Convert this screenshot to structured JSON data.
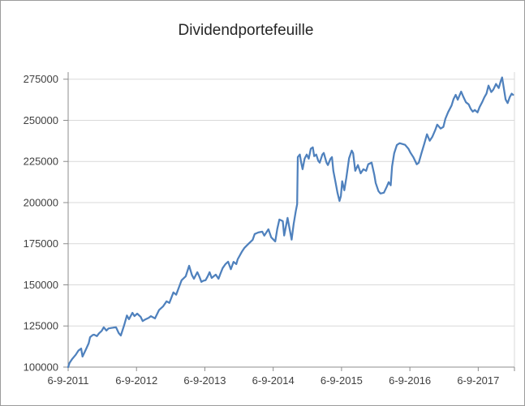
{
  "window": {
    "background": "#ffffff",
    "border_color": "#9b9b9b"
  },
  "chart_data": {
    "type": "line",
    "title": "Dividendportefeuille",
    "xlabel": "",
    "ylabel": "",
    "legend": "none",
    "grid": "horizontal",
    "x_axis": {
      "tick_labels": [
        "6-9-2011",
        "6-9-2012",
        "6-9-2013",
        "6-9-2014",
        "6-9-2015",
        "6-9-2016",
        "6-9-2017"
      ],
      "tick_t": [
        0,
        1,
        2,
        3,
        4,
        5,
        6
      ],
      "t_range": [
        0,
        6.53
      ],
      "t_unit": "years since 6-9-2011"
    },
    "y_axis": {
      "tick_labels": [
        "100000",
        "125000",
        "150000",
        "175000",
        "200000",
        "225000",
        "250000",
        "275000"
      ],
      "tick_values": [
        100000,
        125000,
        150000,
        175000,
        200000,
        225000,
        250000,
        275000
      ],
      "value_range": [
        100000,
        279300
      ]
    },
    "colors": {
      "series": "#4F81BD",
      "gridline": "#D9D9D9",
      "axis": "#8C8C8C",
      "tick_label": "#404040",
      "title": "#262626"
    },
    "series": [
      {
        "name": "Dividendportefeuille",
        "color": "#4F81BD",
        "points": [
          [
            0,
            100000
          ],
          [
            0.02,
            102500
          ],
          [
            0.06,
            105000
          ],
          [
            0.11,
            107500
          ],
          [
            0.15,
            110000
          ],
          [
            0.19,
            111300
          ],
          [
            0.21,
            106400
          ],
          [
            0.26,
            110800
          ],
          [
            0.3,
            114500
          ],
          [
            0.32,
            118200
          ],
          [
            0.36,
            119500
          ],
          [
            0.38,
            119700
          ],
          [
            0.42,
            118800
          ],
          [
            0.45,
            120500
          ],
          [
            0.49,
            122000
          ],
          [
            0.52,
            124200
          ],
          [
            0.56,
            122200
          ],
          [
            0.59,
            123500
          ],
          [
            0.63,
            123800
          ],
          [
            0.66,
            124000
          ],
          [
            0.7,
            124200
          ],
          [
            0.74,
            120700
          ],
          [
            0.77,
            119200
          ],
          [
            0.82,
            125600
          ],
          [
            0.86,
            131400
          ],
          [
            0.89,
            129100
          ],
          [
            0.94,
            133000
          ],
          [
            0.97,
            131000
          ],
          [
            1.01,
            132500
          ],
          [
            1.06,
            130600
          ],
          [
            1.09,
            128000
          ],
          [
            1.13,
            129000
          ],
          [
            1.18,
            130000
          ],
          [
            1.21,
            131000
          ],
          [
            1.27,
            129600
          ],
          [
            1.33,
            134700
          ],
          [
            1.39,
            137000
          ],
          [
            1.44,
            140000
          ],
          [
            1.48,
            139000
          ],
          [
            1.54,
            145400
          ],
          [
            1.58,
            144000
          ],
          [
            1.63,
            149500
          ],
          [
            1.66,
            152800
          ],
          [
            1.72,
            155200
          ],
          [
            1.77,
            161600
          ],
          [
            1.81,
            156000
          ],
          [
            1.84,
            153700
          ],
          [
            1.89,
            157700
          ],
          [
            1.92,
            155000
          ],
          [
            1.95,
            151800
          ],
          [
            1.98,
            152500
          ],
          [
            2.01,
            152800
          ],
          [
            2.04,
            155000
          ],
          [
            2.07,
            157700
          ],
          [
            2.1,
            154200
          ],
          [
            2.14,
            155500
          ],
          [
            2.16,
            156200
          ],
          [
            2.2,
            153700
          ],
          [
            2.23,
            157000
          ],
          [
            2.26,
            160200
          ],
          [
            2.3,
            162500
          ],
          [
            2.34,
            164100
          ],
          [
            2.38,
            159500
          ],
          [
            2.42,
            164000
          ],
          [
            2.46,
            162600
          ],
          [
            2.48,
            165500
          ],
          [
            2.54,
            170000
          ],
          [
            2.58,
            172500
          ],
          [
            2.64,
            175000
          ],
          [
            2.7,
            177400
          ],
          [
            2.73,
            180900
          ],
          [
            2.78,
            181800
          ],
          [
            2.84,
            182300
          ],
          [
            2.87,
            179900
          ],
          [
            2.93,
            183800
          ],
          [
            2.97,
            178900
          ],
          [
            3.03,
            176400
          ],
          [
            3.06,
            184000
          ],
          [
            3.09,
            189700
          ],
          [
            3.14,
            188700
          ],
          [
            3.16,
            180000
          ],
          [
            3.21,
            190700
          ],
          [
            3.24,
            184000
          ],
          [
            3.27,
            177500
          ],
          [
            3.3,
            187000
          ],
          [
            3.33,
            194700
          ],
          [
            3.35,
            199000
          ],
          [
            3.36,
            227700
          ],
          [
            3.39,
            229200
          ],
          [
            3.41,
            224300
          ],
          [
            3.43,
            220300
          ],
          [
            3.46,
            226700
          ],
          [
            3.49,
            229200
          ],
          [
            3.52,
            226700
          ],
          [
            3.55,
            232700
          ],
          [
            3.58,
            233600
          ],
          [
            3.6,
            228200
          ],
          [
            3.63,
            229200
          ],
          [
            3.66,
            225300
          ],
          [
            3.68,
            224300
          ],
          [
            3.72,
            229200
          ],
          [
            3.74,
            230200
          ],
          [
            3.78,
            224300
          ],
          [
            3.8,
            222800
          ],
          [
            3.84,
            226700
          ],
          [
            3.86,
            227700
          ],
          [
            3.88,
            219300
          ],
          [
            3.91,
            212900
          ],
          [
            3.94,
            206000
          ],
          [
            3.97,
            201000
          ],
          [
            3.99,
            204000
          ],
          [
            4.01,
            213000
          ],
          [
            4.04,
            207500
          ],
          [
            4.07,
            215000
          ],
          [
            4.11,
            227000
          ],
          [
            4.15,
            231600
          ],
          [
            4.17,
            230000
          ],
          [
            4.2,
            219300
          ],
          [
            4.24,
            222800
          ],
          [
            4.28,
            217800
          ],
          [
            4.32,
            220300
          ],
          [
            4.36,
            219300
          ],
          [
            4.39,
            223300
          ],
          [
            4.44,
            224300
          ],
          [
            4.48,
            216900
          ],
          [
            4.5,
            211900
          ],
          [
            4.54,
            207000
          ],
          [
            4.57,
            205500
          ],
          [
            4.62,
            206000
          ],
          [
            4.66,
            209500
          ],
          [
            4.69,
            212400
          ],
          [
            4.72,
            210500
          ],
          [
            4.74,
            222000
          ],
          [
            4.77,
            230000
          ],
          [
            4.81,
            235000
          ],
          [
            4.85,
            236100
          ],
          [
            4.89,
            235600
          ],
          [
            4.93,
            235100
          ],
          [
            4.98,
            232700
          ],
          [
            5.01,
            230200
          ],
          [
            5.05,
            227700
          ],
          [
            5.1,
            223300
          ],
          [
            5.13,
            224300
          ],
          [
            5.17,
            230200
          ],
          [
            5.21,
            235600
          ],
          [
            5.25,
            241500
          ],
          [
            5.29,
            237600
          ],
          [
            5.33,
            240100
          ],
          [
            5.37,
            244000
          ],
          [
            5.4,
            247400
          ],
          [
            5.45,
            245000
          ],
          [
            5.49,
            246000
          ],
          [
            5.52,
            251000
          ],
          [
            5.56,
            255000
          ],
          [
            5.61,
            259000
          ],
          [
            5.64,
            263000
          ],
          [
            5.67,
            265500
          ],
          [
            5.7,
            262500
          ],
          [
            5.75,
            267500
          ],
          [
            5.78,
            264500
          ],
          [
            5.82,
            261000
          ],
          [
            5.86,
            259700
          ],
          [
            5.89,
            257000
          ],
          [
            5.92,
            255300
          ],
          [
            5.95,
            256300
          ],
          [
            5.99,
            254800
          ],
          [
            6.02,
            258000
          ],
          [
            6.06,
            261200
          ],
          [
            6.09,
            264000
          ],
          [
            6.12,
            266200
          ],
          [
            6.15,
            271100
          ],
          [
            6.19,
            267200
          ],
          [
            6.22,
            268600
          ],
          [
            6.26,
            272100
          ],
          [
            6.3,
            269600
          ],
          [
            6.33,
            274000
          ],
          [
            6.35,
            276100
          ],
          [
            6.38,
            268000
          ],
          [
            6.4,
            262700
          ],
          [
            6.43,
            260500
          ],
          [
            6.46,
            264000
          ],
          [
            6.49,
            266200
          ],
          [
            6.51,
            265500
          ]
        ]
      }
    ]
  }
}
